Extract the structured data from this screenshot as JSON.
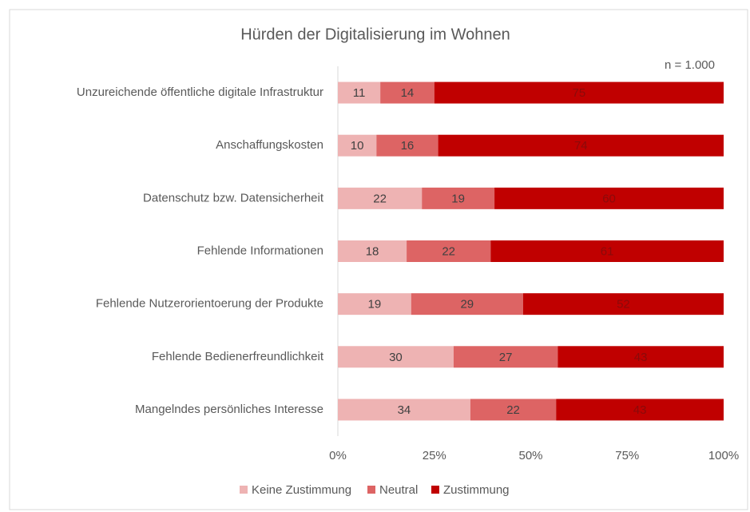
{
  "chart_data": {
    "type": "bar",
    "orientation": "horizontal",
    "stack": "percent",
    "title": "Hürden der Digitalisierung im Wohnen",
    "annotation": "n = 1.000",
    "categories": [
      "Unzureichende öffentliche digitale Infrastruktur",
      "Anschaffungskosten",
      "Datenschutz bzw. Datensicherheit",
      "Fehlende Informationen",
      "Fehlende Nutzerorientoerung der Produkte",
      "Fehlende Bedienerfreundlichkeit",
      "Mangelndes persönliches Interesse"
    ],
    "series": [
      {
        "name": "Keine Zustimmung",
        "color": "#eeb3b3",
        "label_color": "#404040",
        "values": [
          11,
          10,
          22,
          18,
          19,
          30,
          34
        ]
      },
      {
        "name": "Neutral",
        "color": "#dd6464",
        "label_color": "#404040",
        "values": [
          14,
          16,
          19,
          22,
          29,
          27,
          22
        ]
      },
      {
        "name": "Zustimmung",
        "color": "#c00000",
        "label_color": "#8a0a0a",
        "values": [
          75,
          74,
          60,
          61,
          52,
          43,
          43
        ]
      }
    ],
    "xlim": [
      0,
      100
    ],
    "xticks": [
      {
        "value": 0,
        "label": "0%"
      },
      {
        "value": 25,
        "label": "25%"
      },
      {
        "value": 50,
        "label": "50%"
      },
      {
        "value": 75,
        "label": "75%"
      },
      {
        "value": 100,
        "label": "100%"
      }
    ],
    "grid": false,
    "legend": "bottom"
  }
}
